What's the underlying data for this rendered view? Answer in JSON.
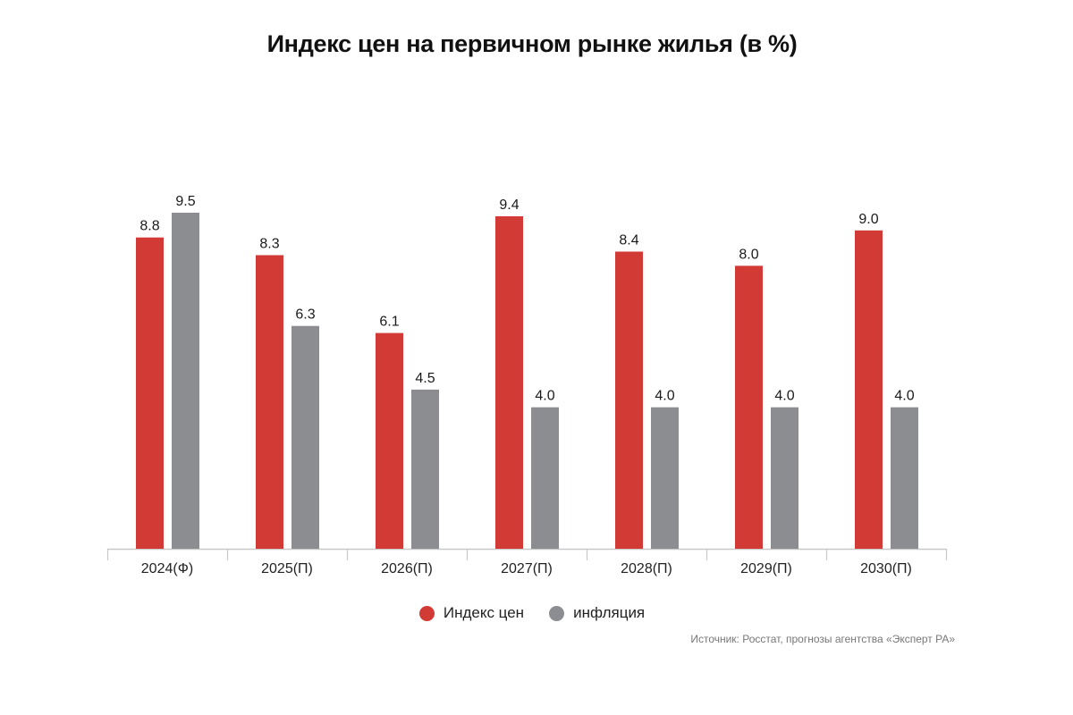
{
  "title": "Индекс цен на первичном рынке жилья (в %)",
  "colors": {
    "price_index": "#d13a35",
    "inflation": "#8c8d91",
    "axis": "#c8c8c8"
  },
  "legend": [
    {
      "label": "Индекс цен",
      "color": "#d13a35"
    },
    {
      "label": "инфляция",
      "color": "#8c8d91"
    }
  ],
  "source": "Источник: Росстат, прогнозы агентства «Эксперт РА»",
  "chart_data": {
    "type": "bar",
    "title": "Индекс цен на первичном рынке жилья (в %)",
    "categories": [
      "2024(Ф)",
      "2025(П)",
      "2026(П)",
      "2027(П)",
      "2028(П)",
      "2029(П)",
      "2030(П)"
    ],
    "series": [
      {
        "name": "Индекс цен",
        "values": [
          8.8,
          8.3,
          6.1,
          9.4,
          8.4,
          8.0,
          9.0
        ],
        "labels": [
          "8.8",
          "8.3",
          "6.1",
          "9.4",
          "8.4",
          "8.0",
          "9.0"
        ]
      },
      {
        "name": "инфляция",
        "values": [
          9.5,
          6.3,
          4.5,
          4.0,
          4.0,
          4.0,
          4.0
        ],
        "labels": [
          "9.5",
          "6.3",
          "4.5",
          "4.0",
          "4.0",
          "4.0",
          "4.0"
        ]
      }
    ],
    "xlabel": "",
    "ylabel": "",
    "ylim": [
      0,
      9.5
    ],
    "grid": false,
    "legend_position": "bottom-center"
  }
}
